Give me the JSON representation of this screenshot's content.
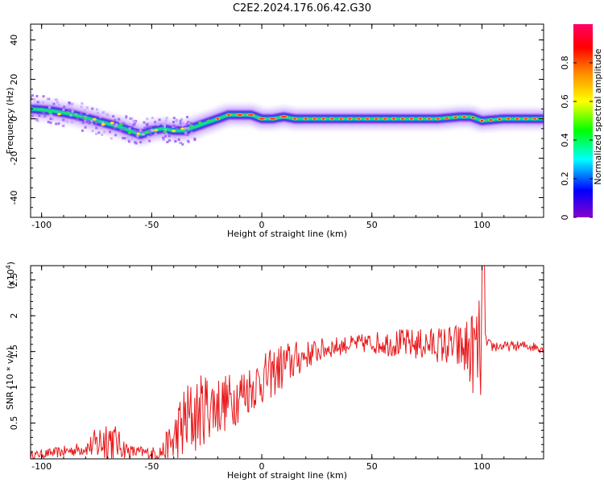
{
  "title": "C2E2.2024.176.06.42.G30",
  "chart_data": [
    {
      "type": "heatmap",
      "xlabel": "Height of straight line (km)",
      "ylabel": "Frequency (Hz)",
      "xlim": [
        -105,
        128
      ],
      "ylim": [
        -50,
        48
      ],
      "xticks": [
        -100,
        -50,
        0,
        50,
        100
      ],
      "yticks": [
        -40,
        -20,
        0,
        20,
        40
      ],
      "grid": false,
      "colorbar": {
        "label": "Normalized spectral amplitude",
        "range": [
          0.0,
          1.0
        ],
        "ticks": [
          0.0,
          0.2,
          0.4,
          0.6,
          0.8
        ],
        "colormap": [
          "#8800cc",
          "#0000ff",
          "#00ffff",
          "#00ff00",
          "#ffff00",
          "#ff8800",
          "#ff0000",
          "#ff0066"
        ]
      },
      "ridge": {
        "x": [
          -105,
          -95,
          -85,
          -75,
          -65,
          -60,
          -55,
          -50,
          -45,
          -40,
          -35,
          -30,
          -25,
          -20,
          -15,
          -10,
          -5,
          0,
          5,
          10,
          15,
          20,
          40,
          60,
          80,
          90,
          95,
          100,
          110,
          128
        ],
        "frequency": [
          5,
          4,
          2,
          -1,
          -4,
          -6,
          -8,
          -6,
          -5,
          -6,
          -6,
          -4,
          -2,
          0,
          2,
          2,
          2,
          0,
          0,
          1,
          0,
          0,
          0,
          0,
          0,
          1,
          1,
          -1,
          0,
          0
        ]
      }
    },
    {
      "type": "line",
      "xlabel": "Height of straight line (km)",
      "ylabel": "SNR (10 * v/v)",
      "scale_label": "(x10",
      "scale_exponent": "4",
      "scale_suffix": ")",
      "xlim": [
        -105,
        128
      ],
      "ylim": [
        0.0,
        2.7
      ],
      "xticks": [
        -100,
        -50,
        0,
        50,
        100
      ],
      "yticks": [
        0.5,
        1.0,
        1.5,
        2.0,
        2.5
      ],
      "color": "#e8191c",
      "envelope": {
        "x": [
          -105,
          -90,
          -80,
          -75,
          -70,
          -65,
          -60,
          -50,
          -45,
          -40,
          -35,
          -30,
          -25,
          -20,
          -15,
          -10,
          -5,
          0,
          5,
          10,
          20,
          30,
          40,
          50,
          60,
          70,
          80,
          90,
          95,
          100,
          101,
          102,
          110,
          120,
          128
        ],
        "mean": [
          0.05,
          0.1,
          0.15,
          0.2,
          0.3,
          0.2,
          0.1,
          0.08,
          0.1,
          0.25,
          0.5,
          0.6,
          0.75,
          0.75,
          0.8,
          0.9,
          1.0,
          1.1,
          1.2,
          1.3,
          1.45,
          1.55,
          1.6,
          1.62,
          1.62,
          1.6,
          1.6,
          1.55,
          1.5,
          1.5,
          1.6,
          1.58,
          1.57,
          1.58,
          1.55
        ],
        "amplitude": [
          0.05,
          0.08,
          0.1,
          0.25,
          0.4,
          0.2,
          0.1,
          0.08,
          0.15,
          0.4,
          0.6,
          0.55,
          0.5,
          0.45,
          0.4,
          0.4,
          0.35,
          0.35,
          0.35,
          0.35,
          0.2,
          0.15,
          0.12,
          0.15,
          0.2,
          0.22,
          0.25,
          0.35,
          0.55,
          0.8,
          0.9,
          0.1,
          0.07,
          0.07,
          0.07
        ]
      }
    }
  ]
}
